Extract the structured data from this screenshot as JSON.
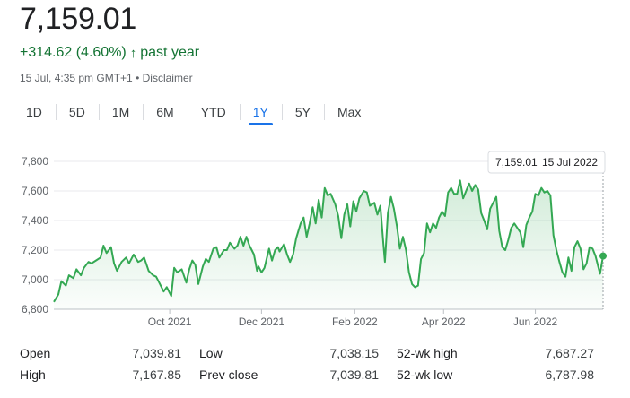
{
  "quote": {
    "price": "7,159.01",
    "change": "+314.62 (4.60%)",
    "change_arrow": "↑",
    "change_period": "past year",
    "timestamp": "15 Jul, 4:35 pm GMT+1",
    "separator": "•",
    "disclaimer": "Disclaimer"
  },
  "ranges": [
    {
      "label": "1D",
      "active": false
    },
    {
      "label": "5D",
      "active": false
    },
    {
      "label": "1M",
      "active": false
    },
    {
      "label": "6M",
      "active": false
    },
    {
      "label": "YTD",
      "active": false
    },
    {
      "label": "1Y",
      "active": true
    },
    {
      "label": "5Y",
      "active": false
    },
    {
      "label": "Max",
      "active": false
    }
  ],
  "tooltip": {
    "value": "7,159.01",
    "date": "15 Jul 2022"
  },
  "colors": {
    "line": "#34a853",
    "positive_text": "#137333",
    "active_tab": "#1a73e8"
  },
  "chart_data": {
    "type": "line",
    "y_ticks": [
      "7,800",
      "7,600",
      "7,400",
      "7,200",
      "7,000",
      "6,800"
    ],
    "y_tick_values": [
      7800,
      7600,
      7400,
      7200,
      7000,
      6800
    ],
    "ylim": [
      6800,
      7800
    ],
    "x_ticks": [
      "Oct 2021",
      "Dec 2021",
      "Feb 2022",
      "Apr 2022",
      "Jun 2022"
    ],
    "x_tick_days": [
      77,
      138,
      200,
      259,
      320
    ],
    "xlim": [
      0,
      365
    ],
    "grid": true,
    "series": [
      {
        "days": [
          0,
          3,
          5,
          8,
          10,
          13,
          15,
          18,
          20,
          23,
          25,
          28,
          31,
          33,
          35,
          38,
          40,
          42,
          45,
          48,
          50,
          53,
          56,
          58,
          60,
          63,
          66,
          68,
          70,
          73,
          75,
          78,
          80,
          82,
          85,
          88,
          90,
          92,
          94,
          96,
          99,
          101,
          103,
          106,
          108,
          110,
          113,
          115,
          117,
          120,
          122,
          124,
          126,
          128,
          130,
          133,
          135,
          136,
          138,
          140,
          143,
          145,
          147,
          149,
          150,
          153,
          155,
          157,
          159,
          161,
          164,
          166,
          168,
          170,
          172,
          174,
          176,
          178,
          180,
          182,
          184,
          187,
          189,
          191,
          193,
          195,
          197,
          199,
          201,
          203,
          206,
          208,
          210,
          213,
          215,
          217,
          219,
          220,
          222,
          224,
          226,
          228,
          230,
          232,
          234,
          236,
          238,
          240,
          242,
          244,
          246,
          248,
          250,
          252,
          254,
          256,
          258,
          260,
          262,
          264,
          266,
          268,
          270,
          272,
          274,
          276,
          278,
          280,
          282,
          284,
          286,
          288,
          290,
          292,
          294,
          296,
          298,
          300,
          302,
          304,
          306,
          308,
          310,
          312,
          314,
          316,
          318,
          320,
          322,
          324,
          326,
          328,
          330,
          332,
          334,
          336,
          338,
          340,
          342,
          344,
          346,
          348,
          350,
          352,
          354,
          356,
          358,
          360,
          363,
          365
        ],
        "values": [
          6850,
          6900,
          6990,
          6960,
          7030,
          7010,
          7070,
          7030,
          7080,
          7120,
          7110,
          7130,
          7150,
          7230,
          7180,
          7220,
          7110,
          7060,
          7120,
          7150,
          7110,
          7170,
          7120,
          7130,
          7150,
          7060,
          7030,
          7020,
          6980,
          6920,
          6950,
          6890,
          7080,
          7050,
          7070,
          6980,
          7070,
          7130,
          7100,
          6970,
          7090,
          7140,
          7120,
          7210,
          7220,
          7150,
          7200,
          7200,
          7250,
          7210,
          7230,
          7290,
          7230,
          7290,
          7230,
          7170,
          7060,
          7090,
          7050,
          7080,
          7210,
          7130,
          7200,
          7220,
          7190,
          7240,
          7170,
          7120,
          7170,
          7280,
          7380,
          7420,
          7290,
          7380,
          7490,
          7380,
          7540,
          7420,
          7620,
          7570,
          7580,
          7510,
          7430,
          7280,
          7440,
          7510,
          7360,
          7530,
          7460,
          7550,
          7600,
          7590,
          7500,
          7520,
          7440,
          7500,
          7240,
          7120,
          7450,
          7560,
          7480,
          7360,
          7210,
          7290,
          7200,
          7050,
          6970,
          6950,
          6960,
          7140,
          7180,
          7380,
          7320,
          7380,
          7350,
          7420,
          7460,
          7430,
          7590,
          7620,
          7580,
          7580,
          7670,
          7550,
          7600,
          7650,
          7600,
          7640,
          7610,
          7450,
          7400,
          7340,
          7480,
          7520,
          7560,
          7330,
          7220,
          7200,
          7270,
          7350,
          7380,
          7350,
          7320,
          7220,
          7370,
          7420,
          7460,
          7580,
          7570,
          7620,
          7590,
          7600,
          7570,
          7300,
          7200,
          7120,
          7050,
          7020,
          7150,
          7060,
          7220,
          7260,
          7210,
          7070,
          7110,
          7220,
          7210,
          7160,
          7040,
          7160
        ]
      }
    ]
  },
  "stats": [
    {
      "label": "Open",
      "value": "7,039.81"
    },
    {
      "label": "Low",
      "value": "7,038.15"
    },
    {
      "label": "52-wk high",
      "value": "7,687.27"
    },
    {
      "label": "High",
      "value": "7,167.85"
    },
    {
      "label": "Prev close",
      "value": "7,039.81"
    },
    {
      "label": "52-wk low",
      "value": "6,787.98"
    }
  ]
}
